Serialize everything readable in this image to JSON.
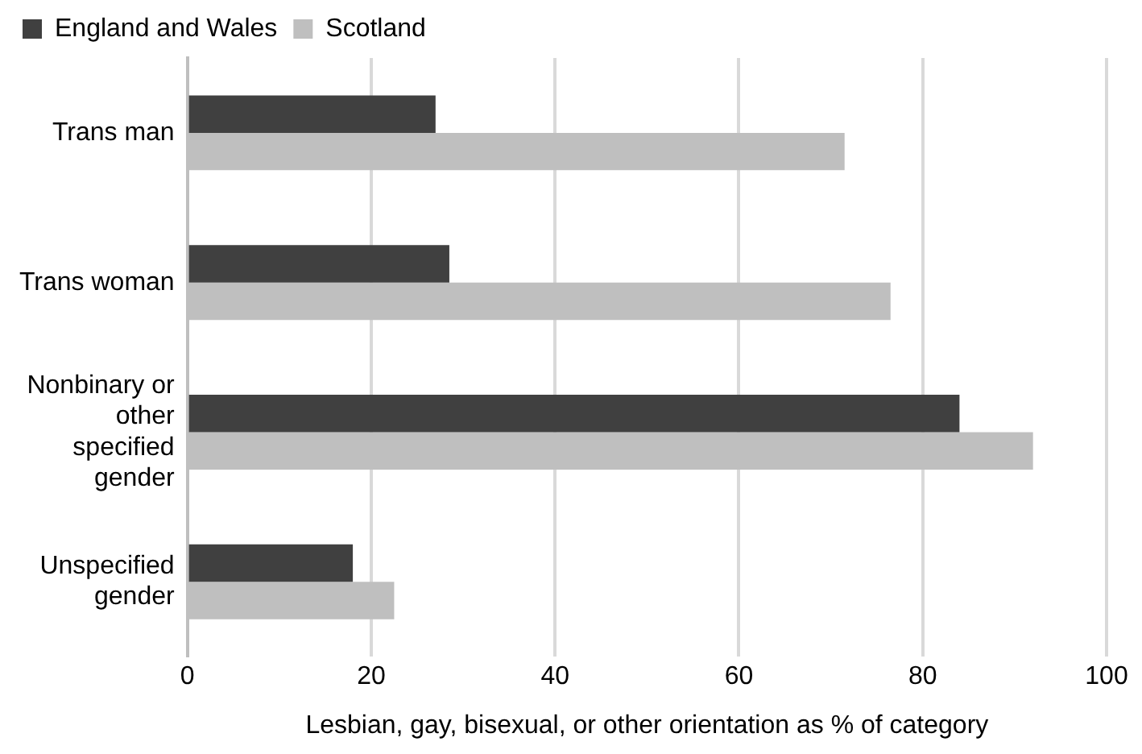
{
  "chart_data": {
    "type": "bar",
    "orientation": "horizontal",
    "xlabel": "Lesbian, gay, bisexual, or other orientation as % of category",
    "categories": [
      "Trans man",
      "Trans woman",
      "Nonbinary or other specified gender",
      "Unspecified gender"
    ],
    "series": [
      {
        "name": "England and Wales",
        "color": "#404040",
        "values": [
          27,
          28.5,
          84,
          18
        ]
      },
      {
        "name": "Scotland",
        "color": "#bfbfbf",
        "values": [
          71.5,
          76.5,
          92,
          22.5
        ]
      }
    ],
    "xlim": [
      0,
      100
    ],
    "xticks": [
      0,
      20,
      40,
      60,
      80,
      100
    ],
    "grid": "x",
    "legend": "top"
  }
}
